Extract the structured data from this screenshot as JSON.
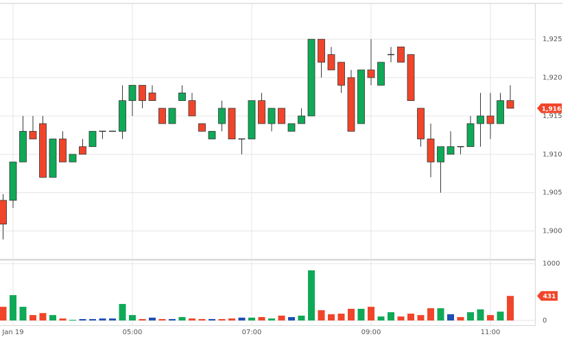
{
  "chart_data": [
    {
      "type": "candlestick",
      "categories": [
        null,
        "Jan 19",
        null,
        null,
        null,
        null,
        null,
        null,
        null,
        null,
        null,
        null,
        null,
        "05:00",
        null,
        null,
        null,
        null,
        null,
        null,
        null,
        null,
        null,
        null,
        null,
        "07:00",
        null,
        null,
        null,
        null,
        null,
        null,
        null,
        null,
        null,
        null,
        null,
        "09:00",
        null,
        null,
        null,
        null,
        null,
        null,
        null,
        null,
        null,
        null,
        null,
        "11:00",
        null,
        null
      ],
      "open": [
        1904,
        1904,
        1909,
        1913,
        1914,
        1907,
        1912,
        1909,
        1911,
        1911,
        1913,
        1913,
        1913,
        1917,
        1919,
        1918,
        1916,
        1914,
        1917,
        1917,
        1914,
        1912,
        1914,
        1916,
        1912,
        1912,
        1917,
        1914,
        1916,
        1913,
        1914,
        1915,
        1925,
        1923,
        1922,
        1920,
        1914,
        1921,
        1919,
        1923,
        1924,
        1923,
        1916,
        1912,
        1909,
        1910,
        1911,
        1911,
        1914,
        1915,
        1914,
        1917
      ],
      "high": [
        1904.8,
        1909,
        1915,
        1915,
        1915,
        1912,
        1913,
        1910,
        1912,
        1913,
        1913,
        1913,
        1919,
        1919,
        1919,
        1919,
        1916,
        1916,
        1919,
        1918,
        1914,
        1913,
        1917,
        1916,
        1912,
        1917,
        1918,
        1916,
        1916,
        1914,
        1916,
        1925,
        1925,
        1924,
        1922,
        1921,
        1921,
        1925,
        1922,
        1924,
        1924,
        1923,
        1916,
        1914,
        1911,
        1913,
        1911,
        1915,
        1918,
        1918,
        1918,
        1919
      ],
      "low": [
        1898.9,
        1903,
        1909,
        1912,
        1907,
        1907,
        1909,
        1909,
        1910,
        1911,
        1912,
        1913,
        1912,
        1915,
        1916,
        1917,
        1914,
        1914,
        1917,
        1915,
        1913,
        1912,
        1913,
        1912,
        1910,
        1912,
        1914,
        1913,
        1914,
        1913,
        1914,
        1915,
        1920,
        1921,
        1918,
        1913,
        1914,
        1919,
        1919,
        1922,
        1922,
        1917,
        1911,
        1907,
        1905,
        1910,
        1910,
        1911,
        1911,
        1912,
        1914,
        1916
      ],
      "close": [
        1900.9,
        1909,
        1913,
        1912,
        1907,
        1912,
        1909,
        1910,
        1910,
        1913,
        1913,
        1913,
        1917,
        1919,
        1917,
        1917,
        1914,
        1916,
        1918,
        1915,
        1913,
        1913,
        1916,
        1912,
        1912,
        1917,
        1914,
        1916,
        1914,
        1914,
        1915,
        1925,
        1922,
        1921,
        1919,
        1913,
        1921,
        1920,
        1922,
        1923,
        1922,
        1917,
        1912,
        1909,
        1911,
        1911,
        1911,
        1914,
        1915,
        1914,
        1917,
        1916
      ],
      "up_color": "#0fa958",
      "down_color": "#f0452a",
      "ylim": [
        1896.3,
        1929.4
      ],
      "yticks": [
        {
          "value": 1900,
          "label": "1,900"
        },
        {
          "value": 1905,
          "label": "1,905"
        },
        {
          "value": 1910,
          "label": "1,910"
        },
        {
          "value": 1915,
          "label": "1,915"
        },
        {
          "value": 1920,
          "label": "1,920"
        },
        {
          "value": 1925,
          "label": "1,925"
        }
      ],
      "last_price": {
        "value": 1916,
        "label": "1,916"
      },
      "grid": true
    },
    {
      "type": "bar",
      "values": [
        240,
        445,
        240,
        95,
        130,
        95,
        35,
        12,
        25,
        25,
        35,
        35,
        290,
        95,
        25,
        50,
        25,
        25,
        60,
        35,
        25,
        25,
        25,
        35,
        50,
        50,
        60,
        35,
        85,
        60,
        85,
        880,
        180,
        110,
        120,
        205,
        205,
        240,
        70,
        145,
        70,
        120,
        95,
        215,
        215,
        110,
        60,
        145,
        195,
        95,
        155,
        431
      ],
      "colors": [
        "#f0452a",
        "#0fa958",
        "#0fa958",
        "#f0452a",
        "#f0452a",
        "#0fa958",
        "#f0452a",
        "#0fa958",
        "#1f4fb4",
        "#1f4fb4",
        "#1f4fb4",
        "#1f4fb4",
        "#0fa958",
        "#0fa958",
        "#f0452a",
        "#1f4fb4",
        "#f0452a",
        "#1f4fb4",
        "#0fa958",
        "#f0452a",
        "#f0452a",
        "#1f4fb4",
        "#f0452a",
        "#f0452a",
        "#1f4fb4",
        "#0fa958",
        "#f0452a",
        "#0fa958",
        "#f0452a",
        "#1f4fb4",
        "#0fa958",
        "#0fa958",
        "#f0452a",
        "#f0452a",
        "#f0452a",
        "#f0452a",
        "#0fa958",
        "#f0452a",
        "#0fa958",
        "#0fa958",
        "#f0452a",
        "#f0452a",
        "#f0452a",
        "#f0452a",
        "#0fa958",
        "#1f4fb4",
        "#f0452a",
        "#0fa958",
        "#0fa958",
        "#f0452a",
        "#0fa958",
        "#f0452a"
      ],
      "ylim": [
        -36,
        1048
      ],
      "yticks": [
        0,
        1000
      ],
      "grid": true
    }
  ]
}
